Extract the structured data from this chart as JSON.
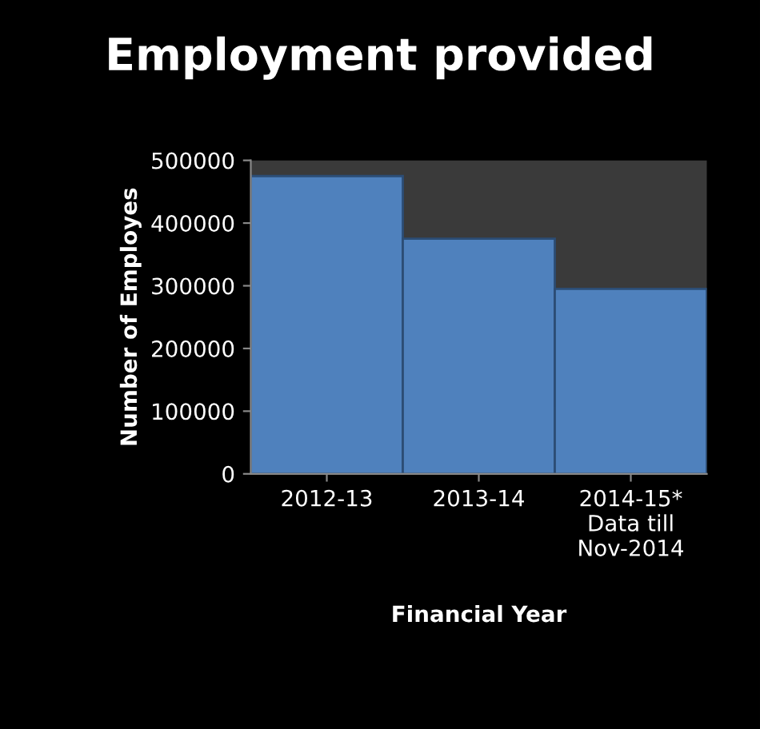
{
  "chart_data": {
    "type": "bar",
    "title": "Employment provided",
    "xlabel": "Financial Year",
    "ylabel": "Number of Employes",
    "categories": [
      "2012-13",
      "2013-14",
      "2014-15*\nData till\nNov-2014"
    ],
    "values": [
      475000,
      375000,
      295000
    ],
    "color": "#4f81bd",
    "ylim": [
      0,
      500000
    ],
    "yticks": [
      0,
      100000,
      200000,
      300000,
      400000,
      500000
    ],
    "grid": false
  }
}
